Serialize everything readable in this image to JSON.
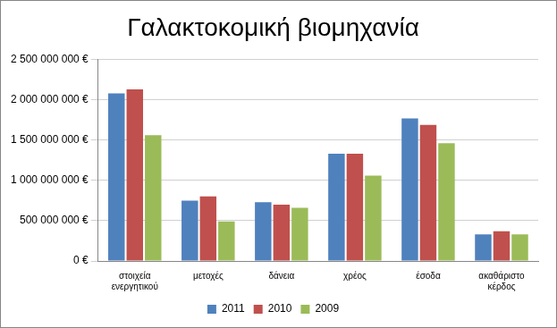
{
  "chart_data": {
    "type": "bar",
    "title": "Γαλακτοκομική βιομηχανία",
    "categories": [
      "στοιχεία ενεργητικού",
      "μετοχές",
      "δάνεια",
      "χρέος",
      "έσοδα",
      "ακαθάριστο κέρδος"
    ],
    "series": [
      {
        "name": "2011",
        "color": "#4f81bd",
        "values": [
          2080000000,
          750000000,
          730000000,
          1330000000,
          1770000000,
          330000000
        ]
      },
      {
        "name": "2010",
        "color": "#c0504d",
        "values": [
          2130000000,
          800000000,
          700000000,
          1330000000,
          1690000000,
          370000000
        ]
      },
      {
        "name": "2009",
        "color": "#9bbb59",
        "values": [
          1560000000,
          490000000,
          660000000,
          1060000000,
          1460000000,
          330000000
        ]
      }
    ],
    "ylim": [
      0,
      2500000000
    ],
    "yticks": [
      {
        "value": 0,
        "label": "0 €"
      },
      {
        "value": 500000000,
        "label": "500 000 000 €"
      },
      {
        "value": 1000000000,
        "label": "1 000 000 000 €"
      },
      {
        "value": 1500000000,
        "label": "1 500 000 000 €"
      },
      {
        "value": 2000000000,
        "label": "2 000 000 000 €"
      },
      {
        "value": 2500000000,
        "label": "2 500 000 000 €"
      }
    ],
    "grid": true,
    "legend": "bottom"
  }
}
